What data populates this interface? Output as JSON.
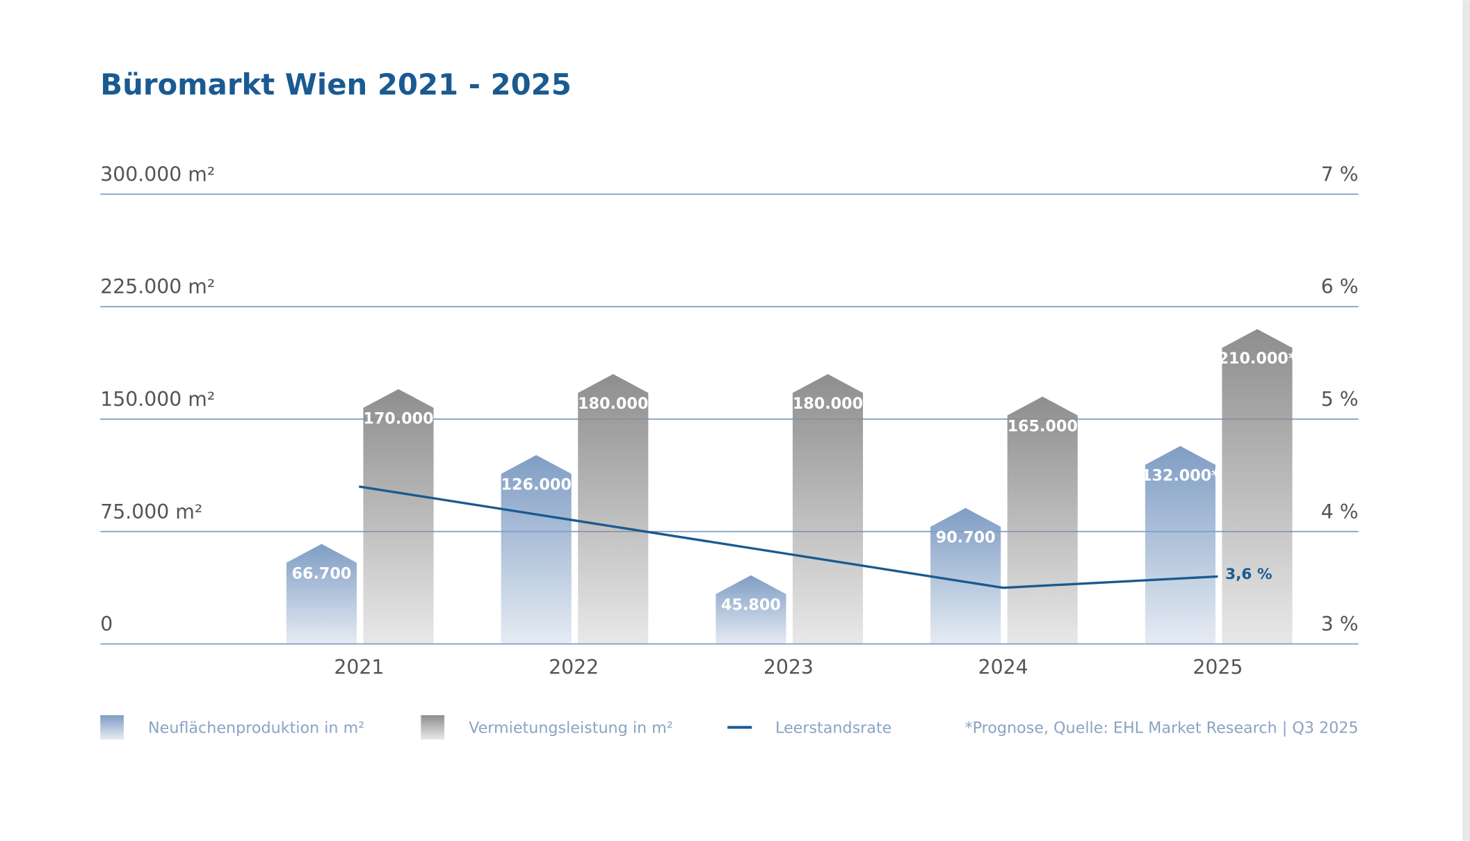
{
  "chart_data": {
    "type": "bar-line",
    "title": "Büromarkt Wien 2021 - 2025",
    "categories": [
      "2021",
      "2022",
      "2023",
      "2024",
      "2025"
    ],
    "series": [
      {
        "name": "Neuflächenproduktion in m²",
        "color": "#7f9dc4",
        "values": [
          66700,
          126000,
          45800,
          90700,
          132000
        ],
        "value_labels": [
          "66.700",
          "126.000",
          "45.800",
          "90.700",
          "132.000*"
        ]
      },
      {
        "name": "Vermietungsleistung in m²",
        "color": "#8e8e8e",
        "values": [
          170000,
          180000,
          180000,
          165000,
          210000
        ],
        "value_labels": [
          "170.000",
          "180.000",
          "180.000",
          "165.000",
          "210.000*"
        ]
      },
      {
        "name": "Leerstandsrate",
        "type": "line",
        "axis": "y2",
        "color": "#1a5a91",
        "values": [
          4.4,
          4.1,
          3.8,
          3.5,
          3.6
        ],
        "value_labels": [
          null,
          null,
          null,
          null,
          "3,6 %"
        ]
      }
    ],
    "ylim": [
      0,
      300000
    ],
    "yticks": [
      0,
      {
        "value": 75000,
        "label": "75.000 m²"
      },
      {
        "value": 150000,
        "label": "150.000 m²"
      },
      {
        "value": 225000,
        "label": "225.000 m²"
      },
      {
        "value": 300000,
        "label": "300.000 m²"
      }
    ],
    "y2lim": [
      3,
      7
    ],
    "y2ticks": [
      {
        "value": 3,
        "label": "3 %"
      },
      {
        "value": 4,
        "label": "4 %"
      },
      {
        "value": 5,
        "label": "5 %"
      },
      {
        "value": 6,
        "label": "6 %"
      },
      {
        "value": 7,
        "label": "7 %"
      }
    ],
    "grid": true,
    "note": "*Prognose, Quelle: EHL Market Research | Q3 2025"
  }
}
